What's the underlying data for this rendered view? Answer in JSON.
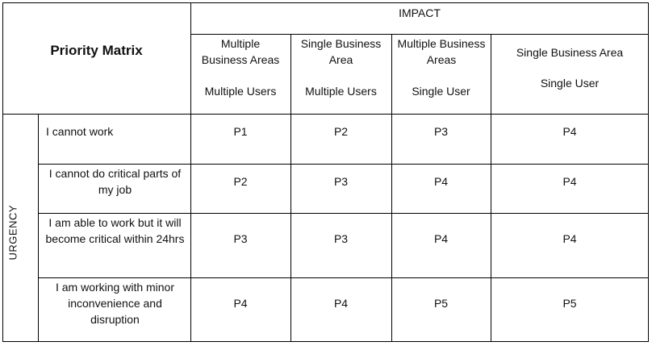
{
  "title": "Priority Matrix",
  "impact_label": "IMPACT",
  "urgency_label": "URGENCY",
  "columns": [
    {
      "scope": "Multiple Business Areas",
      "users": "Multiple Users"
    },
    {
      "scope": "Single Business Area",
      "users": "Multiple Users"
    },
    {
      "scope": "Multiple Business Areas",
      "users": "Single User"
    },
    {
      "scope": "Single Business Area",
      "users": "Single User"
    }
  ],
  "rows": [
    {
      "urgency": "I cannot work",
      "values": [
        "P1",
        "P2",
        "P3",
        "P4"
      ]
    },
    {
      "urgency": "I cannot do critical parts of my job",
      "values": [
        "P2",
        "P3",
        "P4",
        "P4"
      ]
    },
    {
      "urgency": "I am able to work but it will become critical within 24hrs",
      "values": [
        "P3",
        "P3",
        "P4",
        "P4"
      ]
    },
    {
      "urgency": "I am working with minor inconvenience and disruption",
      "values": [
        "P4",
        "P4",
        "P5",
        "P5"
      ]
    }
  ]
}
